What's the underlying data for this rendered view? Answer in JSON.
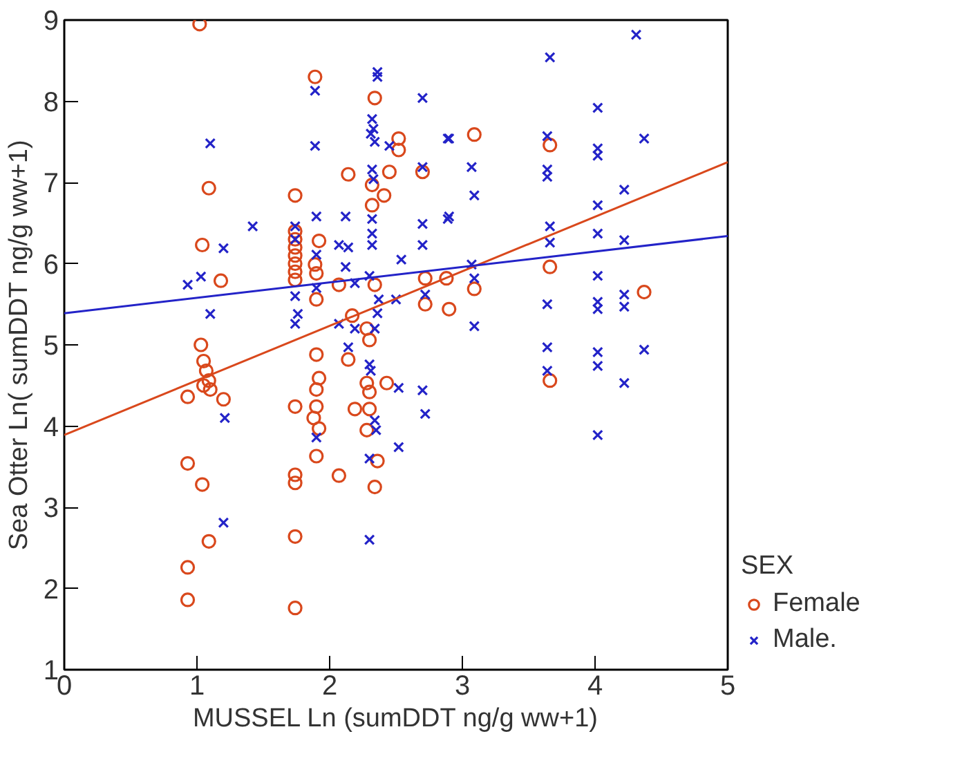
{
  "chart_data": {
    "type": "scatter",
    "xlabel": "MUSSEL Ln (sumDDT ng/g ww+1)",
    "ylabel": "Sea Otter Ln( sumDDT ng/g ww+1)",
    "legend_title": "SEX",
    "xlim": [
      0,
      5
    ],
    "ylim": [
      1,
      9
    ],
    "xticks": [
      0,
      1,
      2,
      3,
      4,
      5
    ],
    "yticks": [
      1,
      2,
      3,
      4,
      5,
      6,
      7,
      8,
      9
    ],
    "grid": false,
    "legend": "right",
    "series": [
      {
        "name": "Female",
        "color": "#d9481c",
        "marker": "circle",
        "x": [
          1.02,
          1.09,
          1.04,
          1.18,
          1.03,
          1.05,
          1.07,
          1.09,
          1.05,
          1.1,
          0.93,
          1.2,
          0.93,
          1.04,
          1.09,
          0.93,
          0.93,
          1.74,
          1.74,
          1.74,
          1.74,
          1.74,
          1.74,
          1.74,
          1.74,
          1.74,
          1.74,
          1.74,
          1.74,
          1.74,
          1.89,
          2.34,
          2.52,
          2.52,
          2.14,
          2.45,
          2.7,
          2.32,
          2.41,
          2.32,
          1.92,
          1.89,
          1.9,
          2.07,
          2.34,
          2.72,
          2.88,
          2.72,
          2.9,
          1.9,
          2.17,
          2.28,
          2.3,
          2.14,
          1.9,
          1.92,
          1.9,
          1.9,
          1.88,
          2.43,
          2.28,
          2.3,
          2.19,
          2.3,
          2.28,
          1.92,
          1.9,
          2.07,
          2.36,
          2.34,
          3.09,
          3.66,
          3.09,
          3.66,
          4.37,
          3.66
        ],
        "values": [
          8.95,
          6.93,
          6.23,
          5.79,
          5.0,
          4.8,
          4.68,
          4.56,
          4.5,
          4.45,
          4.36,
          4.33,
          3.54,
          3.28,
          2.58,
          2.26,
          1.86,
          6.84,
          6.4,
          6.3,
          6.2,
          6.1,
          6.0,
          5.9,
          5.8,
          4.24,
          3.4,
          3.3,
          2.64,
          1.76,
          8.3,
          8.04,
          7.54,
          7.4,
          7.1,
          7.13,
          7.13,
          6.97,
          6.84,
          6.72,
          6.28,
          5.99,
          5.88,
          5.74,
          5.74,
          5.82,
          5.82,
          5.5,
          5.44,
          5.56,
          5.36,
          5.2,
          5.06,
          4.82,
          4.88,
          4.59,
          4.45,
          4.24,
          4.1,
          4.53,
          4.53,
          4.42,
          4.21,
          4.21,
          3.95,
          3.97,
          3.63,
          3.39,
          3.57,
          3.25,
          7.59,
          7.46,
          5.69,
          5.96,
          5.65,
          4.56
        ]
      },
      {
        "name": "Male.",
        "color": "#2323c8",
        "marker": "cross",
        "x": [
          1.1,
          1.42,
          1.2,
          0.93,
          1.03,
          1.1,
          1.21,
          1.2,
          1.74,
          1.74,
          1.74,
          1.74,
          2.36,
          2.36,
          1.89,
          2.7,
          2.9,
          2.32,
          2.33,
          2.31,
          2.34,
          2.45,
          1.89,
          2.32,
          2.33,
          2.7,
          1.9,
          2.12,
          2.32,
          2.32,
          2.32,
          2.7,
          2.7,
          2.9,
          2.07,
          2.14,
          1.9,
          2.12,
          2.54,
          2.3,
          1.9,
          2.19,
          2.37,
          2.5,
          2.72,
          2.36,
          2.07,
          2.19,
          2.34,
          2.14,
          2.3,
          2.31,
          2.52,
          2.7,
          2.72,
          2.34,
          2.35,
          2.52,
          2.3,
          2.3,
          1.9,
          1.76,
          4.31,
          3.66,
          4.02,
          2.89,
          3.64,
          4.37,
          4.02,
          4.02,
          3.07,
          3.64,
          3.64,
          3.09,
          4.22,
          2.89,
          4.02,
          4.02,
          3.66,
          3.66,
          4.22,
          3.07,
          3.09,
          4.02,
          3.64,
          4.02,
          4.02,
          4.22,
          4.22,
          3.09,
          3.64,
          3.64,
          4.02,
          4.02,
          4.37,
          4.22,
          4.02
        ],
        "values": [
          7.48,
          6.46,
          6.19,
          5.74,
          5.84,
          5.38,
          4.1,
          2.81,
          6.46,
          6.3,
          5.6,
          5.26,
          8.36,
          8.3,
          8.13,
          8.04,
          7.54,
          7.78,
          7.66,
          7.6,
          7.5,
          7.45,
          7.45,
          7.16,
          7.04,
          7.19,
          6.58,
          6.58,
          6.55,
          6.37,
          6.23,
          6.49,
          6.23,
          6.58,
          6.23,
          6.2,
          6.11,
          5.96,
          6.05,
          5.85,
          5.7,
          5.76,
          5.56,
          5.56,
          5.62,
          5.39,
          5.26,
          5.2,
          5.2,
          4.97,
          4.76,
          4.68,
          4.47,
          4.44,
          4.15,
          4.07,
          3.95,
          3.74,
          3.6,
          2.6,
          3.86,
          5.38,
          8.82,
          8.54,
          7.92,
          7.54,
          7.57,
          7.54,
          7.42,
          7.33,
          7.19,
          7.16,
          7.07,
          6.84,
          6.91,
          6.55,
          6.72,
          6.37,
          6.46,
          6.26,
          6.29,
          5.99,
          5.82,
          5.85,
          5.5,
          5.53,
          5.44,
          5.62,
          5.47,
          5.23,
          4.97,
          4.68,
          4.91,
          4.74,
          4.94,
          4.53,
          3.89
        ]
      },
      {
        "type": "line",
        "color": "#d9481c",
        "x": [
          0,
          5
        ],
        "values": [
          3.89,
          7.25
        ]
      },
      {
        "type": "line",
        "color": "#2323c8",
        "x": [
          0,
          5
        ],
        "values": [
          5.39,
          6.34
        ]
      }
    ]
  }
}
